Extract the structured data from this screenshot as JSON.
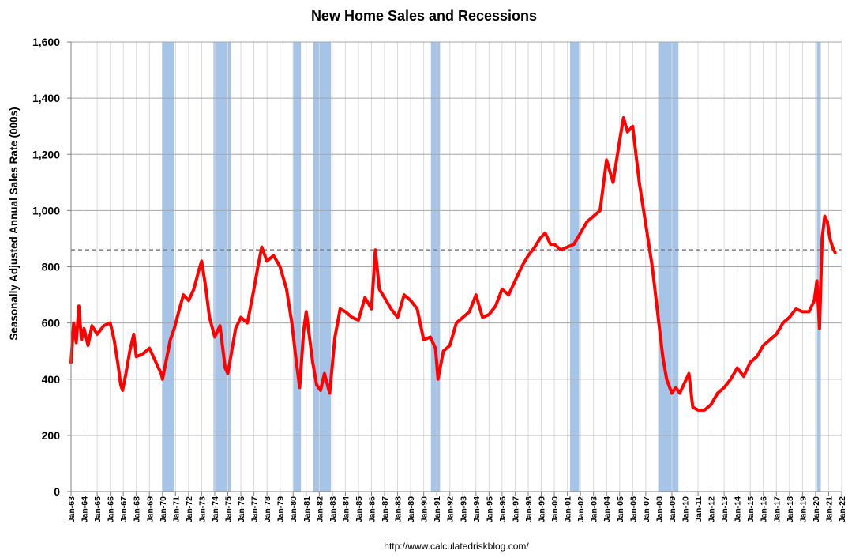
{
  "chart_data": {
    "type": "line",
    "title": "New Home Sales and Recessions",
    "ylabel": "Seasonally Adjusted Annual Sales Rate (000s)",
    "source": "http://www.calculatedriskblog.com/",
    "ylim": [
      0,
      1600
    ],
    "yticks": [
      {
        "value": 0,
        "label": "0"
      },
      {
        "value": 200,
        "label": "200"
      },
      {
        "value": 400,
        "label": "400"
      },
      {
        "value": 600,
        "label": "600"
      },
      {
        "value": 800,
        "label": "800"
      },
      {
        "value": 1000,
        "label": "1,000"
      },
      {
        "value": 1200,
        "label": "1,200"
      },
      {
        "value": 1400,
        "label": "1,400"
      },
      {
        "value": 1600,
        "label": "1,600"
      }
    ],
    "xlim": [
      1963.0,
      2022.0
    ],
    "xticks": [
      "Jan-63",
      "Jan-64",
      "Jan-65",
      "Jan-66",
      "Jan-67",
      "Jan-68",
      "Jan-69",
      "Jan-70",
      "Jan-71",
      "Jan-72",
      "Jan-73",
      "Jan-74",
      "Jan-75",
      "Jan-76",
      "Jan-77",
      "Jan-78",
      "Jan-79",
      "Jan-80",
      "Jan-81",
      "Jan-82",
      "Jan-83",
      "Jan-84",
      "Jan-85",
      "Jan-86",
      "Jan-87",
      "Jan-88",
      "Jan-89",
      "Jan-90",
      "Jan-91",
      "Jan-92",
      "Jan-93",
      "Jan-94",
      "Jan-95",
      "Jan-96",
      "Jan-97",
      "Jan-98",
      "Jan-99",
      "Jan-00",
      "Jan-01",
      "Jan-02",
      "Jan-03",
      "Jan-04",
      "Jan-05",
      "Jan-06",
      "Jan-07",
      "Jan-08",
      "Jan-09",
      "Jan-10",
      "Jan-11",
      "Jan-12",
      "Jan-13",
      "Jan-14",
      "Jan-15",
      "Jan-16",
      "Jan-17",
      "Jan-18",
      "Jan-19",
      "Jan-20",
      "Jan-21",
      "Jan-22"
    ],
    "grid": true,
    "reference_line": 860,
    "recessions": [
      {
        "start": 1969.95,
        "end": 1970.9
      },
      {
        "start": 1973.9,
        "end": 1975.25
      },
      {
        "start": 1980.0,
        "end": 1980.6
      },
      {
        "start": 1981.55,
        "end": 1982.9
      },
      {
        "start": 1990.55,
        "end": 1991.25
      },
      {
        "start": 2001.2,
        "end": 2001.9
      },
      {
        "start": 2007.95,
        "end": 2009.5
      },
      {
        "start": 2020.1,
        "end": 2020.4
      }
    ],
    "series": [
      {
        "color": "#ff0000",
        "x": [
          1963.0,
          1963.2,
          1963.4,
          1963.6,
          1963.8,
          1964.0,
          1964.3,
          1964.6,
          1965.0,
          1965.5,
          1966.0,
          1966.3,
          1966.6,
          1966.8,
          1966.95,
          1967.2,
          1967.5,
          1967.8,
          1968.0,
          1968.5,
          1969.0,
          1969.5,
          1969.9,
          1970.0,
          1970.3,
          1970.6,
          1970.9,
          1971.3,
          1971.6,
          1972.0,
          1972.4,
          1972.8,
          1973.0,
          1973.3,
          1973.6,
          1974.0,
          1974.4,
          1974.8,
          1975.0,
          1975.3,
          1975.6,
          1976.0,
          1976.5,
          1977.0,
          1977.3,
          1977.6,
          1978.0,
          1978.5,
          1979.0,
          1979.5,
          1979.9,
          1980.2,
          1980.5,
          1980.8,
          1981.0,
          1981.5,
          1981.8,
          1982.1,
          1982.4,
          1982.8,
          1983.2,
          1983.6,
          1984.0,
          1984.5,
          1985.0,
          1985.5,
          1986.0,
          1986.3,
          1986.6,
          1987.0,
          1987.5,
          1988.0,
          1988.5,
          1989.0,
          1989.5,
          1990.0,
          1990.5,
          1990.9,
          1991.1,
          1991.5,
          1992.0,
          1992.5,
          1993.0,
          1993.5,
          1994.0,
          1994.5,
          1995.0,
          1995.5,
          1996.0,
          1996.5,
          1997.0,
          1997.5,
          1998.0,
          1998.5,
          1998.9,
          1999.3,
          1999.7,
          2000.0,
          2000.5,
          2001.0,
          2001.5,
          2002.0,
          2002.5,
          2003.0,
          2003.5,
          2004.0,
          2004.5,
          2005.0,
          2005.3,
          2005.6,
          2006.0,
          2006.5,
          2007.0,
          2007.5,
          2008.0,
          2008.3,
          2008.6,
          2009.0,
          2009.3,
          2009.6,
          2010.0,
          2010.3,
          2010.6,
          2011.0,
          2011.5,
          2012.0,
          2012.5,
          2013.0,
          2013.5,
          2014.0,
          2014.5,
          2015.0,
          2015.5,
          2016.0,
          2016.5,
          2017.0,
          2017.5,
          2018.0,
          2018.5,
          2019.0,
          2019.5,
          2019.9,
          2020.1,
          2020.3,
          2020.5,
          2020.7,
          2020.9,
          2021.1,
          2021.3,
          2021.5
        ],
        "y": [
          460,
          600,
          530,
          660,
          540,
          580,
          520,
          590,
          560,
          590,
          600,
          540,
          450,
          380,
          360,
          420,
          500,
          560,
          480,
          490,
          510,
          460,
          420,
          400,
          470,
          540,
          580,
          650,
          700,
          680,
          720,
          790,
          820,
          730,
          620,
          550,
          590,
          440,
          420,
          500,
          580,
          620,
          600,
          720,
          800,
          870,
          820,
          840,
          800,
          720,
          600,
          480,
          370,
          570,
          640,
          460,
          380,
          360,
          420,
          350,
          550,
          650,
          640,
          620,
          610,
          690,
          650,
          860,
          720,
          690,
          650,
          620,
          700,
          680,
          650,
          540,
          550,
          510,
          400,
          500,
          520,
          600,
          620,
          640,
          700,
          620,
          630,
          660,
          720,
          700,
          750,
          800,
          840,
          870,
          900,
          920,
          880,
          880,
          860,
          870,
          880,
          920,
          960,
          980,
          1000,
          1180,
          1100,
          1250,
          1330,
          1280,
          1300,
          1100,
          950,
          800,
          600,
          480,
          400,
          350,
          370,
          350,
          390,
          420,
          300,
          290,
          290,
          310,
          350,
          370,
          400,
          440,
          410,
          460,
          480,
          520,
          540,
          560,
          600,
          620,
          650,
          640,
          640,
          680,
          750,
          580,
          900,
          980,
          960,
          900,
          870,
          850
        ]
      }
    ]
  }
}
